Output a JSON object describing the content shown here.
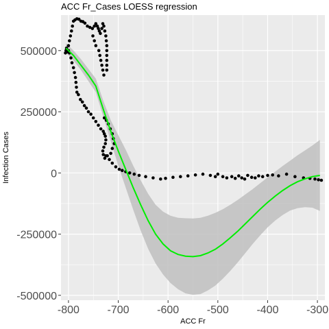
{
  "chart_data": {
    "type": "scatter",
    "title": "ACC Fr_Cases LOESS regression",
    "xlabel": "ACC Fr",
    "ylabel": "Infection Cases",
    "xlim": [
      -815,
      -285
    ],
    "ylim": [
      -520000,
      645000
    ],
    "x_ticks": [
      -800,
      -700,
      -600,
      -500,
      -400,
      -300
    ],
    "x_tick_labels": [
      "-800",
      "-700",
      "-600",
      "-500",
      "-400",
      "-300"
    ],
    "y_ticks": [
      500000,
      250000,
      0,
      -250000,
      -500000
    ],
    "y_tick_labels": [
      "500000",
      "250000",
      "0",
      "-250000",
      "-500000"
    ],
    "grid": true,
    "colors": {
      "panel": "#ebebeb",
      "grid": "#ffffff",
      "points": "#000000",
      "fit_line": "#00ee00",
      "confidence_band": "#c0c0c0"
    },
    "points": [
      [
        -806,
        490000
      ],
      [
        -805,
        500000
      ],
      [
        -804,
        510000
      ],
      [
        -802,
        495000
      ],
      [
        -800,
        500000
      ],
      [
        -798,
        490000
      ],
      [
        -795,
        470000
      ],
      [
        -793,
        450000
      ],
      [
        -790,
        430000
      ],
      [
        -788,
        410000
      ],
      [
        -786,
        390000
      ],
      [
        -785,
        370000
      ],
      [
        -784,
        350000
      ],
      [
        -783,
        330000
      ],
      [
        -780,
        320000
      ],
      [
        -776,
        300000
      ],
      [
        -772,
        290000
      ],
      [
        -768,
        275000
      ],
      [
        -764,
        265000
      ],
      [
        -760,
        250000
      ],
      [
        -755,
        240000
      ],
      [
        -750,
        225000
      ],
      [
        -745,
        210000
      ],
      [
        -740,
        195000
      ],
      [
        -735,
        180000
      ],
      [
        -730,
        170000
      ],
      [
        -728,
        160000
      ],
      [
        -726,
        150000
      ],
      [
        -725,
        135000
      ],
      [
        -726,
        120000
      ],
      [
        -729,
        105000
      ],
      [
        -731,
        90000
      ],
      [
        -730,
        75000
      ],
      [
        -727,
        60000
      ],
      [
        -722,
        70000
      ],
      [
        -715,
        80000
      ],
      [
        -712,
        100000
      ],
      [
        -708,
        120000
      ],
      [
        -710,
        140000
      ],
      [
        -712,
        160000
      ],
      [
        -716,
        180000
      ],
      [
        -720,
        200000
      ],
      [
        -724,
        215000
      ],
      [
        -728,
        225000
      ],
      [
        -725,
        70000
      ],
      [
        -718,
        55000
      ],
      [
        -712,
        40000
      ],
      [
        -705,
        25000
      ],
      [
        -698,
        15000
      ],
      [
        -692,
        10000
      ],
      [
        -685,
        5000
      ],
      [
        -677,
        0
      ],
      [
        -668,
        -5000
      ],
      [
        -658,
        -10000
      ],
      [
        -645,
        -15000
      ],
      [
        -630,
        -20000
      ],
      [
        -615,
        -25000
      ],
      [
        -605,
        -22000
      ],
      [
        -590,
        -18000
      ],
      [
        -575,
        -15000
      ],
      [
        -560,
        -12000
      ],
      [
        -545,
        -8000
      ],
      [
        -530,
        -5000
      ],
      [
        -515,
        -10000
      ],
      [
        -505,
        -15000
      ],
      [
        -500,
        -5000
      ],
      [
        -490,
        -15000
      ],
      [
        -482,
        -20000
      ],
      [
        -472,
        -15000
      ],
      [
        -465,
        -22000
      ],
      [
        -458,
        -12000
      ],
      [
        -452,
        -20000
      ],
      [
        -446,
        -25000
      ],
      [
        -440,
        -10000
      ],
      [
        -432,
        -18000
      ],
      [
        -425,
        -20000
      ],
      [
        -418,
        -12000
      ],
      [
        -410,
        -15000
      ],
      [
        -400,
        -10000
      ],
      [
        -390,
        -8000
      ],
      [
        -378,
        -12000
      ],
      [
        -362,
        -5000
      ],
      [
        -345,
        -15000
      ],
      [
        -328,
        -20000
      ],
      [
        -315,
        -22000
      ],
      [
        -305,
        -25000
      ],
      [
        -298,
        -28000
      ],
      [
        -292,
        -30000
      ],
      [
        -800,
        520000
      ],
      [
        -798,
        540000
      ],
      [
        -796,
        560000
      ],
      [
        -794,
        580000
      ],
      [
        -792,
        600000
      ],
      [
        -790,
        620000
      ],
      [
        -787,
        625000
      ],
      [
        -783,
        630000
      ],
      [
        -779,
        628000
      ],
      [
        -775,
        620000
      ],
      [
        -771,
        618000
      ],
      [
        -767,
        612000
      ],
      [
        -762,
        600000
      ],
      [
        -757,
        595000
      ],
      [
        -752,
        590000
      ],
      [
        -748,
        600000
      ],
      [
        -745,
        610000
      ],
      [
        -742,
        600000
      ],
      [
        -740,
        590000
      ],
      [
        -738,
        580000
      ],
      [
        -736,
        570000
      ],
      [
        -733,
        590000
      ],
      [
        -731,
        610000
      ],
      [
        -729,
        600000
      ],
      [
        -727,
        580000
      ],
      [
        -725,
        560000
      ],
      [
        -724,
        540000
      ],
      [
        -723,
        520000
      ],
      [
        -723,
        500000
      ],
      [
        -723,
        480000
      ],
      [
        -723,
        460000
      ],
      [
        -723,
        440000
      ],
      [
        -723,
        420000
      ],
      [
        -739,
        500000
      ],
      [
        -737,
        480000
      ],
      [
        -735,
        460000
      ],
      [
        -733,
        440000
      ],
      [
        -731,
        420000
      ],
      [
        -729,
        400000
      ],
      [
        -745,
        520000
      ],
      [
        -748,
        540000
      ],
      [
        -751,
        560000
      ]
    ],
    "loess_fit": [
      [
        -805,
        510000
      ],
      [
        -790,
        480000
      ],
      [
        -775,
        440000
      ],
      [
        -760,
        400000
      ],
      [
        -745,
        355000
      ],
      [
        -730,
        260000
      ],
      [
        -715,
        170000
      ],
      [
        -700,
        90000
      ],
      [
        -685,
        15000
      ],
      [
        -670,
        -60000
      ],
      [
        -655,
        -130000
      ],
      [
        -640,
        -195000
      ],
      [
        -625,
        -250000
      ],
      [
        -610,
        -290000
      ],
      [
        -595,
        -318000
      ],
      [
        -580,
        -333000
      ],
      [
        -565,
        -340000
      ],
      [
        -550,
        -342000
      ],
      [
        -535,
        -338000
      ],
      [
        -520,
        -327000
      ],
      [
        -505,
        -312000
      ],
      [
        -490,
        -290000
      ],
      [
        -475,
        -265000
      ],
      [
        -460,
        -238000
      ],
      [
        -445,
        -208000
      ],
      [
        -430,
        -178000
      ],
      [
        -415,
        -148000
      ],
      [
        -400,
        -120000
      ],
      [
        -385,
        -95000
      ],
      [
        -370,
        -72000
      ],
      [
        -355,
        -52000
      ],
      [
        -340,
        -36000
      ],
      [
        -325,
        -24000
      ],
      [
        -310,
        -15000
      ],
      [
        -295,
        -10000
      ]
    ],
    "confidence_band": [
      [
        -805,
        530000,
        490000
      ],
      [
        -790,
        500000,
        460000
      ],
      [
        -775,
        465000,
        420000
      ],
      [
        -760,
        425000,
        375000
      ],
      [
        -745,
        385000,
        330000
      ],
      [
        -730,
        295000,
        230000
      ],
      [
        -715,
        215000,
        130000
      ],
      [
        -700,
        155000,
        30000
      ],
      [
        -685,
        95000,
        -60000
      ],
      [
        -670,
        30000,
        -150000
      ],
      [
        -655,
        -30000,
        -235000
      ],
      [
        -640,
        -85000,
        -310000
      ],
      [
        -625,
        -130000,
        -370000
      ],
      [
        -610,
        -158000,
        -415000
      ],
      [
        -595,
        -175000,
        -450000
      ],
      [
        -580,
        -183000,
        -475000
      ],
      [
        -565,
        -185000,
        -492000
      ],
      [
        -550,
        -186000,
        -498000
      ],
      [
        -535,
        -183000,
        -495000
      ],
      [
        -520,
        -175000,
        -480000
      ],
      [
        -505,
        -163000,
        -460000
      ],
      [
        -490,
        -148000,
        -432000
      ],
      [
        -475,
        -130000,
        -400000
      ],
      [
        -460,
        -110000,
        -365000
      ],
      [
        -445,
        -88000,
        -328000
      ],
      [
        -430,
        -66000,
        -290000
      ],
      [
        -415,
        -42000,
        -255000
      ],
      [
        -400,
        -18000,
        -222000
      ],
      [
        -385,
        5000,
        -195000
      ],
      [
        -370,
        28000,
        -172000
      ],
      [
        -355,
        50000,
        -154000
      ],
      [
        -340,
        72000,
        -144000
      ],
      [
        -325,
        92000,
        -140000
      ],
      [
        -310,
        112000,
        -142000
      ],
      [
        -295,
        135000,
        -155000
      ]
    ]
  }
}
